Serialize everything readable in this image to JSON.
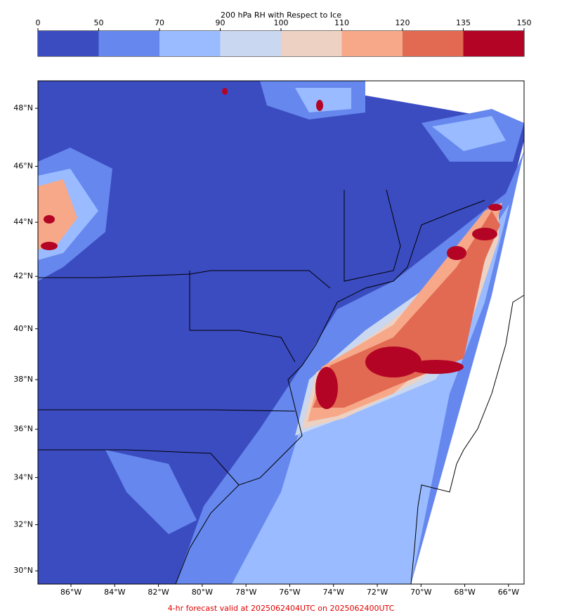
{
  "colorbar": {
    "title": "200 hPa RH with Respect to Ice",
    "ticks": [
      0,
      50,
      70,
      90,
      100,
      110,
      120,
      135,
      150
    ],
    "colors": [
      "#3b4cc0",
      "#6687ed",
      "#9abbff",
      "#c9d7f0",
      "#edd1c2",
      "#f7a889",
      "#e26952",
      "#b40426"
    ]
  },
  "map": {
    "xlim": [
      -87.51,
      -65.29
    ],
    "ylim": [
      29.42,
      48.92
    ],
    "xticks": [
      {
        "value": -86,
        "label": "86°W"
      },
      {
        "value": -84,
        "label": "84°W"
      },
      {
        "value": -82,
        "label": "82°W"
      },
      {
        "value": -80,
        "label": "80°W"
      },
      {
        "value": -78,
        "label": "78°W"
      },
      {
        "value": -76,
        "label": "76°W"
      },
      {
        "value": -74,
        "label": "74°W"
      },
      {
        "value": -72,
        "label": "72°W"
      },
      {
        "value": -70,
        "label": "70°W"
      },
      {
        "value": -68,
        "label": "68°W"
      },
      {
        "value": -66,
        "label": "66°W"
      }
    ],
    "yticks": [
      {
        "value": 30,
        "label": "30°N"
      },
      {
        "value": 32,
        "label": "32°N"
      },
      {
        "value": 34,
        "label": "34°N"
      },
      {
        "value": 36,
        "label": "36°N"
      },
      {
        "value": 38,
        "label": "38°N"
      },
      {
        "value": 40,
        "label": "40°N"
      },
      {
        "value": 42,
        "label": "42°N"
      },
      {
        "value": 44,
        "label": "44°N"
      },
      {
        "value": 46,
        "label": "46°N"
      },
      {
        "value": 48,
        "label": "48°N"
      }
    ]
  },
  "footer": "4-hr forecast valid at 2025062404UTC on 2025062400UTC"
}
